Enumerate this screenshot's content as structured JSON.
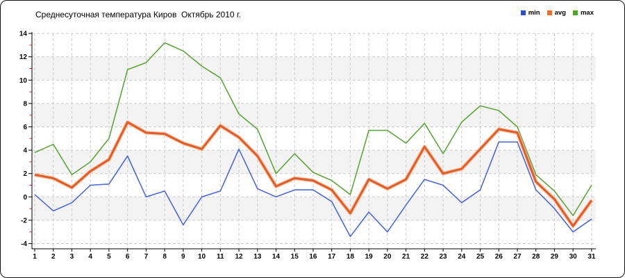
{
  "chart_data": {
    "type": "line",
    "title": "Среднесуточная температура Киров  Октябрь 2010 г.",
    "x": [
      1,
      2,
      3,
      4,
      5,
      6,
      7,
      8,
      9,
      10,
      11,
      12,
      13,
      14,
      15,
      16,
      17,
      18,
      19,
      20,
      21,
      22,
      23,
      24,
      25,
      26,
      27,
      28,
      29,
      30,
      31
    ],
    "xlabel": "",
    "ylabel": "",
    "ylim": [
      -4,
      14
    ],
    "ytick_step": 2,
    "yticks": [
      14,
      12,
      10,
      8,
      6,
      4,
      2,
      0,
      -2,
      -4
    ],
    "grid": "dashed",
    "legend_position": "top-right",
    "series": [
      {
        "name": "min",
        "legend_color": "#2e4ecc",
        "line_color": "#4d68d9",
        "values": [
          0.2,
          -1.2,
          -0.5,
          1.0,
          1.1,
          3.5,
          0.0,
          0.5,
          -2.4,
          0.0,
          0.5,
          4.1,
          0.7,
          0.0,
          0.6,
          0.6,
          -0.4,
          -3.4,
          -1.3,
          -3.0,
          -0.7,
          1.5,
          1.0,
          -0.5,
          0.6,
          4.7,
          4.7,
          0.6,
          -1.0,
          -3.0,
          -1.9
        ]
      },
      {
        "name": "avg",
        "legend_color": "#e8712e",
        "line_color": "#e25c28",
        "halo_color": "#f6ac80",
        "values": [
          1.9,
          1.6,
          0.8,
          2.2,
          3.2,
          6.4,
          5.5,
          5.4,
          4.6,
          4.1,
          6.1,
          5.1,
          3.5,
          0.9,
          1.6,
          1.4,
          0.6,
          -1.4,
          1.5,
          0.7,
          1.5,
          4.3,
          2.0,
          2.4,
          4.1,
          5.8,
          5.5,
          1.3,
          -0.2,
          -2.5,
          -0.3
        ]
      },
      {
        "name": "max",
        "legend_color": "#4da627",
        "line_color": "#5fa53c",
        "values": [
          3.8,
          4.5,
          1.9,
          3.0,
          5.0,
          10.9,
          11.5,
          13.2,
          12.5,
          11.2,
          10.2,
          7.1,
          5.8,
          2.0,
          3.7,
          2.1,
          1.4,
          0.2,
          5.7,
          5.7,
          4.6,
          6.3,
          3.7,
          6.4,
          7.8,
          7.4,
          6.0,
          1.9,
          0.5,
          -1.6,
          1.0
        ]
      }
    ],
    "shaded_bands": [
      [
        2,
        4
      ],
      [
        6,
        8
      ],
      [
        10,
        12
      ],
      [
        -2,
        0
      ]
    ],
    "style_colors": {
      "band_fill": "#f3f3f3",
      "gridline": "#cccccc",
      "axis": "#000000",
      "minor_tick": "#cc2222",
      "background": "#ffffff"
    }
  }
}
